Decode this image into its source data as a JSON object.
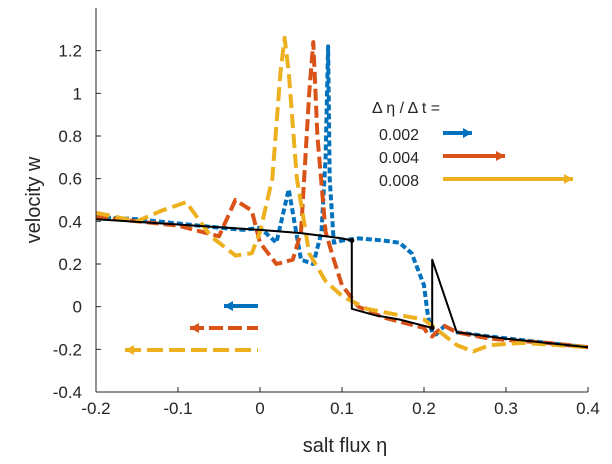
{
  "chart_data": {
    "type": "line",
    "title": "",
    "xlabel": "salt flux η",
    "ylabel": "velocity w",
    "xlim": [
      -0.2,
      0.4
    ],
    "ylim": [
      -0.4,
      1.4
    ],
    "xticks": [
      "-0.2",
      "-0.1",
      "0",
      "0.1",
      "0.2",
      "0.3",
      "0.4"
    ],
    "yticks": [
      "-0.4",
      "-0.2",
      "0",
      "0.2",
      "0.4",
      "0.6",
      "0.8",
      "1",
      "1.2"
    ],
    "grid": false,
    "legend": {
      "title": "Δ  η / Δ  t =",
      "placement": "right"
    },
    "series": [
      {
        "name": "0.002",
        "color": "#0072BD",
        "x": [
          -0.2,
          -0.15,
          -0.1,
          -0.05,
          -0.02,
          0.0,
          0.02,
          0.035,
          0.05,
          0.065,
          0.075,
          0.08,
          0.083,
          0.085,
          0.09,
          0.1,
          0.12,
          0.15,
          0.17,
          0.185,
          0.2,
          0.205,
          0.21,
          0.215,
          0.225,
          0.24,
          0.28,
          0.35,
          0.4
        ],
        "y": [
          0.42,
          0.41,
          0.39,
          0.37,
          0.36,
          0.37,
          0.3,
          0.55,
          0.22,
          0.2,
          0.35,
          0.7,
          1.22,
          0.6,
          0.3,
          0.31,
          0.32,
          0.31,
          0.3,
          0.25,
          0.1,
          -0.05,
          -0.12,
          -0.13,
          -0.09,
          -0.12,
          -0.14,
          -0.17,
          -0.19
        ]
      },
      {
        "name": "0.004",
        "color": "#D95319",
        "x": [
          -0.2,
          -0.15,
          -0.1,
          -0.05,
          -0.03,
          -0.01,
          0.0,
          0.02,
          0.04,
          0.05,
          0.06,
          0.065,
          0.07,
          0.08,
          0.09,
          0.1,
          0.12,
          0.15,
          0.18,
          0.2,
          0.205,
          0.21,
          0.215,
          0.225,
          0.24,
          0.28,
          0.35,
          0.4
        ],
        "y": [
          0.42,
          0.4,
          0.38,
          0.33,
          0.5,
          0.45,
          0.3,
          0.2,
          0.22,
          0.35,
          1.0,
          1.24,
          0.8,
          0.35,
          0.22,
          0.1,
          0.0,
          -0.05,
          -0.08,
          -0.1,
          -0.13,
          -0.14,
          -0.12,
          -0.09,
          -0.12,
          -0.15,
          -0.17,
          -0.19
        ]
      },
      {
        "name": "0.008",
        "color": "#EDB120",
        "x": [
          -0.2,
          -0.15,
          -0.12,
          -0.09,
          -0.06,
          -0.03,
          -0.01,
          0.0,
          0.015,
          0.025,
          0.03,
          0.035,
          0.045,
          0.06,
          0.08,
          0.1,
          0.13,
          0.17,
          0.2,
          0.22,
          0.24,
          0.26,
          0.28,
          0.32,
          0.4
        ],
        "y": [
          0.44,
          0.4,
          0.45,
          0.49,
          0.33,
          0.24,
          0.25,
          0.35,
          0.6,
          1.1,
          1.26,
          1.1,
          0.6,
          0.25,
          0.12,
          0.05,
          -0.01,
          -0.04,
          -0.06,
          -0.12,
          -0.18,
          -0.21,
          -0.18,
          -0.17,
          -0.19
        ]
      },
      {
        "name": "",
        "color": "#000000",
        "x": [
          -0.2,
          -0.1,
          0.0,
          0.05,
          0.1,
          0.112,
          0.112,
          0.14,
          0.17,
          0.19,
          0.2,
          0.205,
          0.21,
          0.21,
          0.24,
          0.3,
          0.4
        ],
        "y": [
          0.41,
          0.385,
          0.36,
          0.345,
          0.32,
          0.31,
          -0.01,
          -0.04,
          -0.06,
          -0.08,
          -0.09,
          -0.095,
          -0.1,
          0.22,
          -0.12,
          -0.15,
          -0.19
        ]
      }
    ]
  }
}
